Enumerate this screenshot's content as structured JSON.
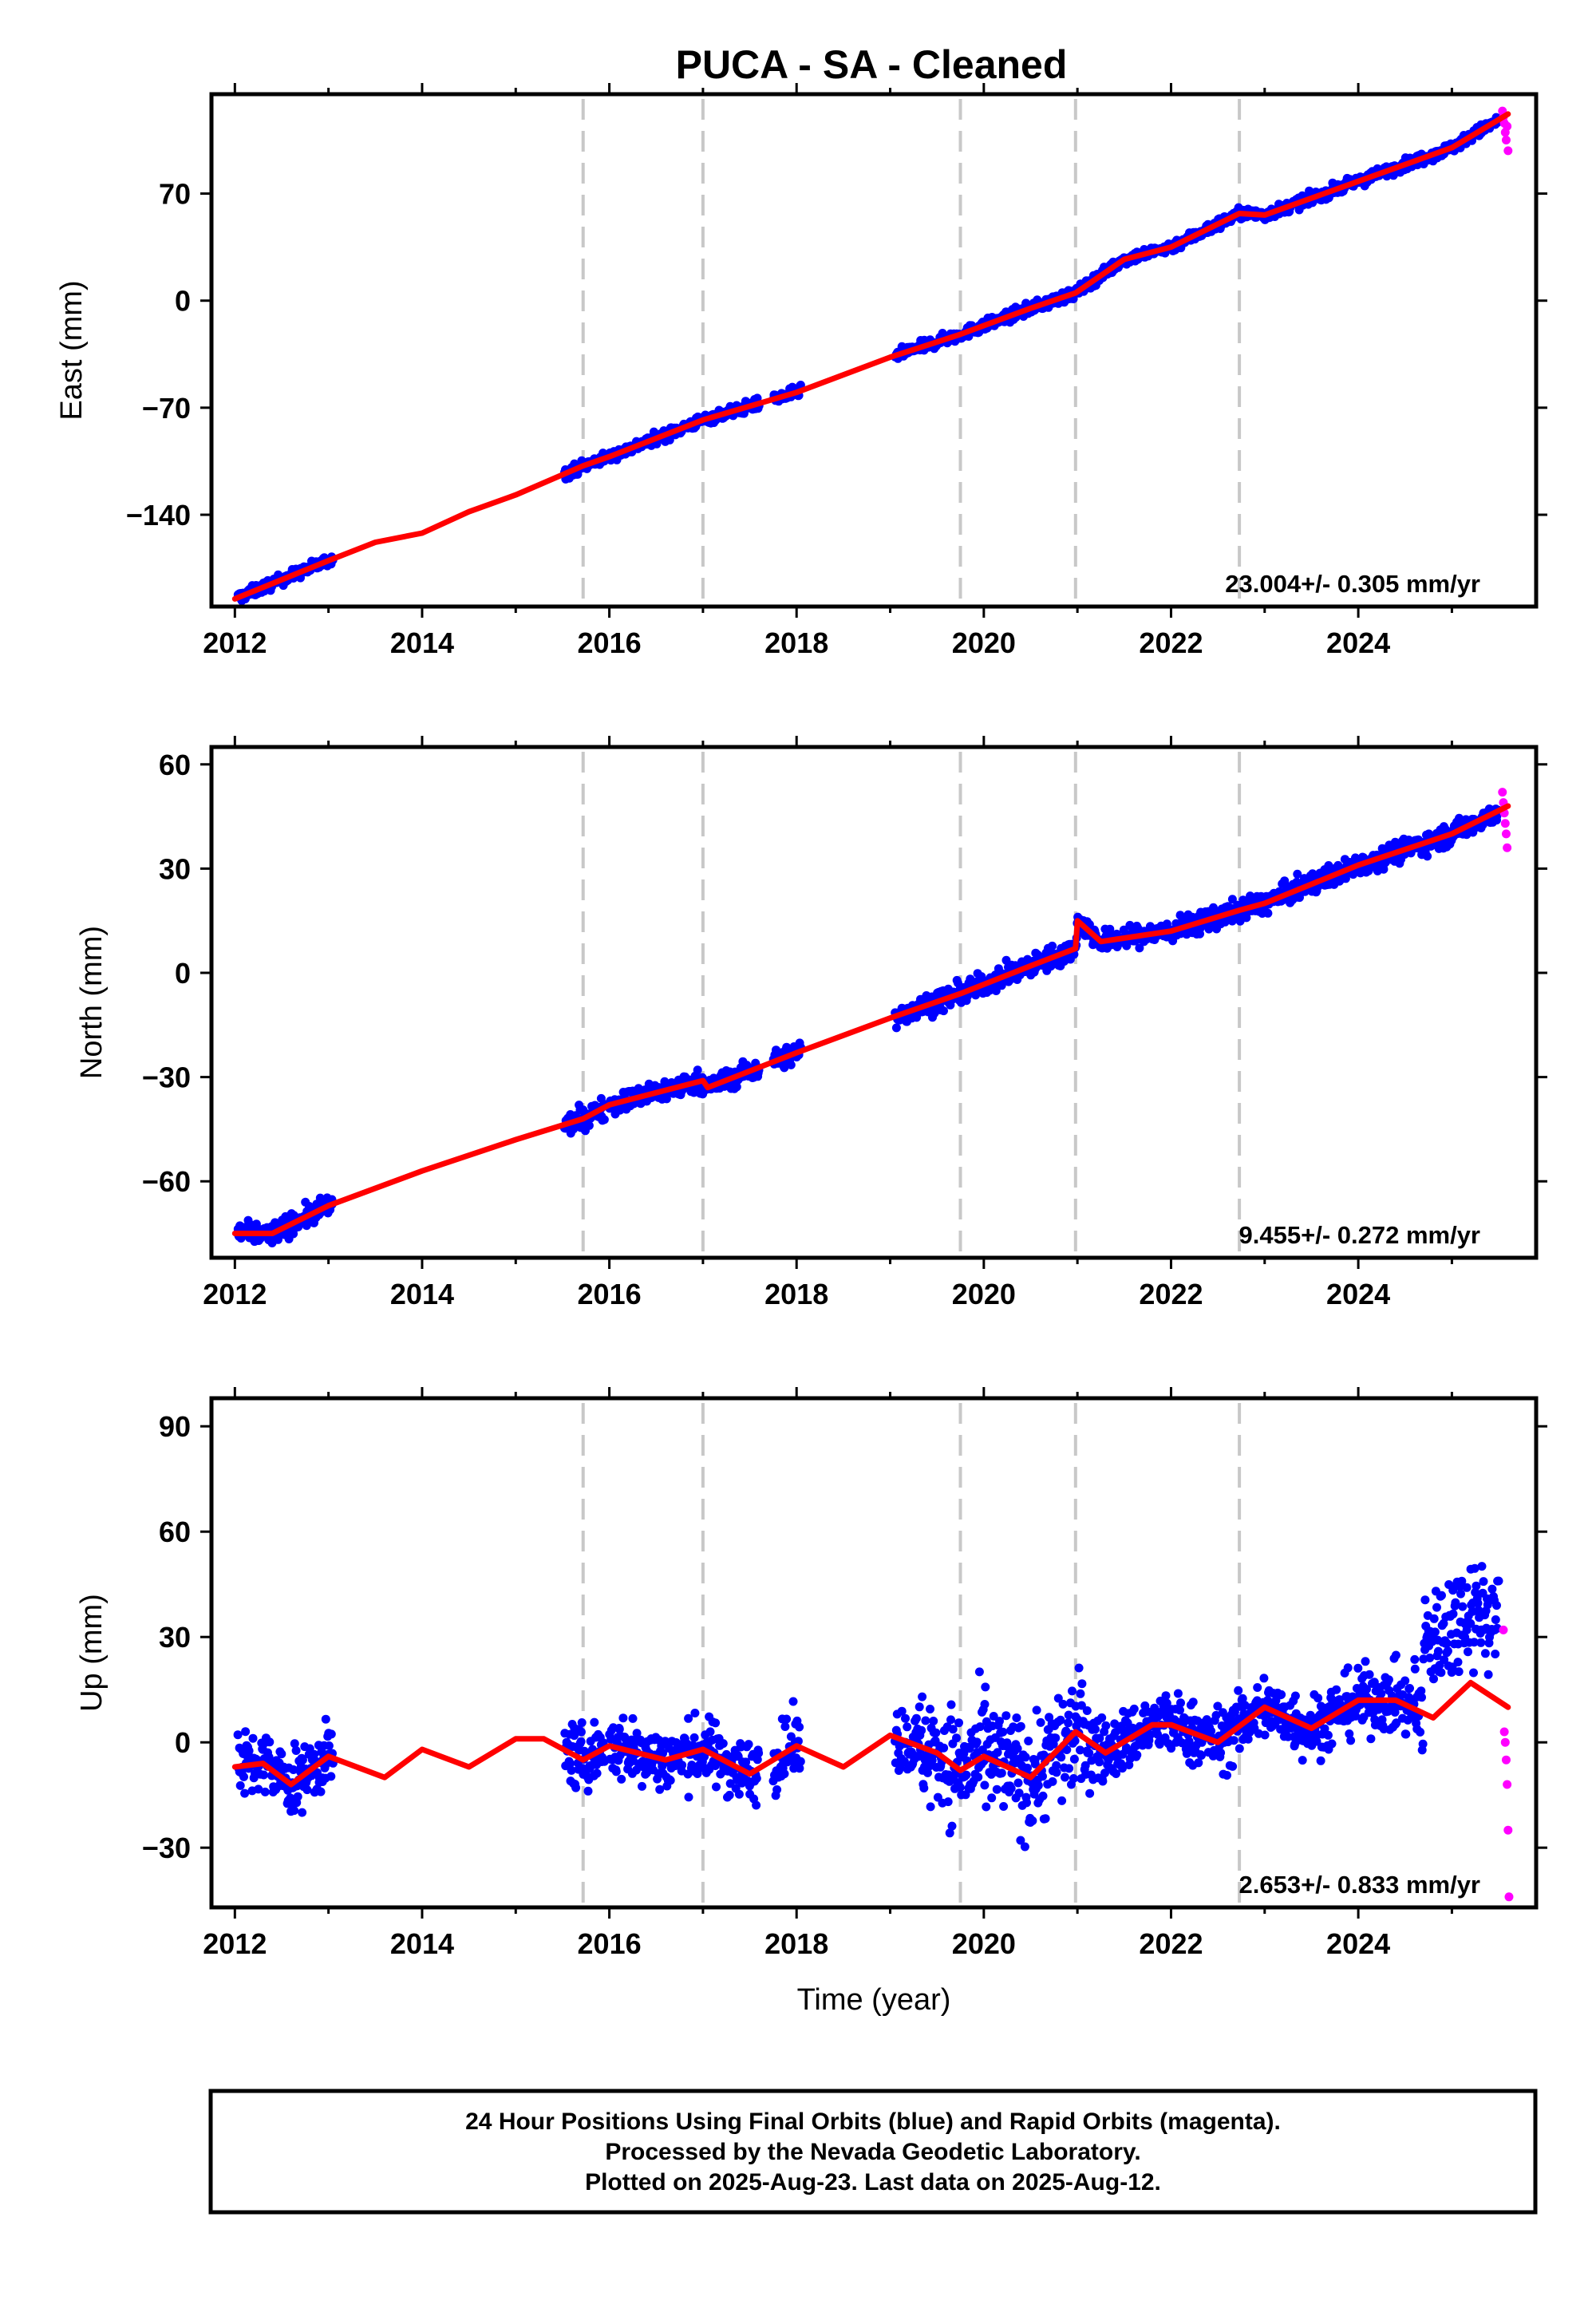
{
  "title": "PUCA  - SA - Cleaned",
  "chart_data": [
    {
      "type": "scatter",
      "component": "east",
      "ylabel": "East (mm)",
      "xlabel": "",
      "xlim": [
        2011.75,
        2025.9
      ],
      "ylim": [
        -200,
        135
      ],
      "xticks": [
        2012,
        2014,
        2016,
        2018,
        2020,
        2022,
        2024
      ],
      "yticks": [
        -140,
        -70,
        0,
        70
      ],
      "grid": false,
      "event_lines": [
        2015.72,
        2017.0,
        2019.75,
        2020.98,
        2022.73
      ],
      "rate_label": "23.004+/- 0.305 mm/yr",
      "final_segments": [
        [
          2012.03,
          2013.05
        ],
        [
          2015.52,
          2015.95
        ],
        [
          2016.0,
          2017.6
        ],
        [
          2017.75,
          2018.05
        ],
        [
          2019.05,
          2025.5
        ]
      ],
      "rapid_points": {
        "x": [
          2025.54,
          2025.55,
          2025.56,
          2025.57,
          2025.58,
          2025.59,
          2025.6
        ],
        "y": [
          124,
          120,
          116,
          110,
          105,
          114,
          98
        ]
      },
      "model": {
        "x": [
          2012.0,
          2013.0,
          2013.5,
          2014.0,
          2014.5,
          2015.0,
          2015.72,
          2016.0,
          2017.0,
          2018.0,
          2019.0,
          2019.75,
          2020.5,
          2020.98,
          2021.5,
          2022.0,
          2022.73,
          2023.0,
          2024.0,
          2025.0,
          2025.6
        ],
        "y": [
          -195,
          -170,
          -158,
          -152,
          -138,
          -127,
          -108,
          -102,
          -78,
          -60,
          -37,
          -22,
          -5,
          5,
          27,
          35,
          57,
          56,
          78,
          100,
          122
        ]
      }
    },
    {
      "type": "scatter",
      "component": "north",
      "ylabel": "North (mm)",
      "xlabel": "",
      "xlim": [
        2011.75,
        2025.9
      ],
      "ylim": [
        -82,
        65
      ],
      "xticks": [
        2012,
        2014,
        2016,
        2018,
        2020,
        2022,
        2024
      ],
      "yticks": [
        -60,
        -30,
        0,
        30,
        60
      ],
      "grid": false,
      "event_lines": [
        2015.72,
        2017.0,
        2019.75,
        2020.98,
        2022.73
      ],
      "rate_label": "9.455+/- 0.272 mm/yr",
      "final_segments": [
        [
          2012.03,
          2013.05
        ],
        [
          2015.52,
          2015.95
        ],
        [
          2016.0,
          2017.6
        ],
        [
          2017.75,
          2018.05
        ],
        [
          2019.05,
          2025.5
        ]
      ],
      "rapid_points": {
        "x": [
          2025.54,
          2025.55,
          2025.56,
          2025.57,
          2025.58,
          2025.59
        ],
        "y": [
          52,
          49,
          46,
          43,
          40,
          36
        ]
      },
      "model": {
        "x": [
          2012.0,
          2012.4,
          2013.0,
          2014.0,
          2015.0,
          2015.72,
          2016.0,
          2017.0,
          2017.05,
          2018.0,
          2019.0,
          2019.75,
          2020.5,
          2020.98,
          2021.0,
          2021.25,
          2022.0,
          2022.73,
          2023.0,
          2024.0,
          2025.0,
          2025.6
        ],
        "y": [
          -75,
          -75,
          -67,
          -57,
          -48,
          -42,
          -38,
          -31,
          -33,
          -23,
          -13,
          -6,
          2,
          7,
          15,
          9,
          12,
          18,
          20,
          31,
          40,
          48
        ]
      }
    },
    {
      "type": "scatter",
      "component": "up",
      "ylabel": "Up (mm)",
      "xlabel": "Time (year)",
      "xlim": [
        2011.75,
        2025.9
      ],
      "ylim": [
        -47,
        98
      ],
      "xticks": [
        2012,
        2014,
        2016,
        2018,
        2020,
        2022,
        2024
      ],
      "yticks": [
        -30,
        0,
        30,
        60,
        90
      ],
      "grid": false,
      "event_lines": [
        2015.72,
        2017.0,
        2019.75,
        2020.98,
        2022.73
      ],
      "rate_label": "2.653+/- 0.833 mm/yr",
      "final_segments": [
        [
          2012.03,
          2013.05
        ],
        [
          2015.52,
          2015.95
        ],
        [
          2016.0,
          2017.6
        ],
        [
          2017.75,
          2018.05
        ],
        [
          2019.05,
          2025.5
        ]
      ],
      "rapid_points": {
        "x": [
          2025.55,
          2025.56,
          2025.57,
          2025.58,
          2025.59,
          2025.6,
          2025.61
        ],
        "y": [
          32,
          3,
          0,
          -5,
          -12,
          -25,
          -44
        ]
      },
      "model": {
        "x": [
          2012.0,
          2012.3,
          2012.6,
          2013.0,
          2013.6,
          2014.0,
          2014.5,
          2015.0,
          2015.3,
          2015.72,
          2016.0,
          2016.6,
          2017.0,
          2017.5,
          2018.0,
          2018.5,
          2019.0,
          2019.5,
          2019.75,
          2020.0,
          2020.5,
          2020.98,
          2021.3,
          2021.8,
          2022.0,
          2022.5,
          2023.0,
          2023.5,
          2024.0,
          2024.4,
          2024.8,
          2025.2,
          2025.6
        ],
        "y": [
          -7,
          -6,
          -12,
          -4,
          -10,
          -2,
          -7,
          1,
          1,
          -5,
          -1,
          -5,
          -2,
          -9,
          -1,
          -7,
          2,
          -3,
          -8,
          -4,
          -10,
          3,
          -3,
          5,
          5,
          0,
          10,
          4,
          12,
          12,
          7,
          17,
          10
        ]
      }
    }
  ],
  "footer": {
    "line1": "24 Hour Positions Using Final Orbits (blue) and Rapid Orbits (magenta).",
    "line2": "Processed by the Nevada Geodetic Laboratory.",
    "line3": "Plotted on 2025-Aug-23. Last data on 2025-Aug-12."
  },
  "colors": {
    "final": "#0000ff",
    "rapid": "#ff00ff",
    "model": "#ff0000",
    "event_line": "#c8c8c8",
    "frame": "#000000"
  }
}
